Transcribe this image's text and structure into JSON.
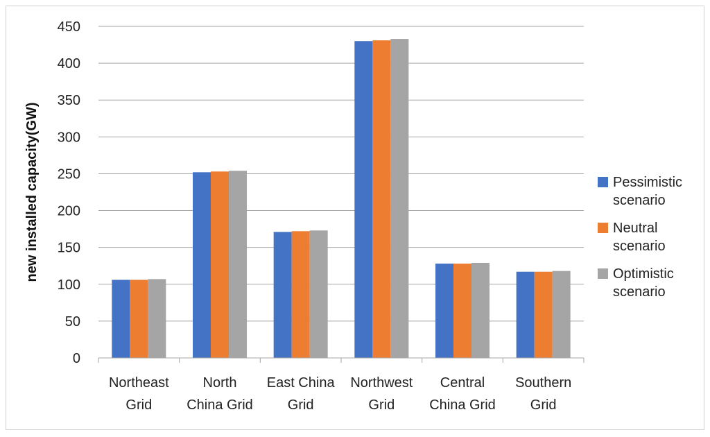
{
  "chart_data": {
    "type": "bar",
    "title": "",
    "xlabel": "",
    "ylabel": "new installed capacity(GW)",
    "ylim": [
      0,
      450
    ],
    "yticks": [
      0,
      50,
      100,
      150,
      200,
      250,
      300,
      350,
      400,
      450
    ],
    "grid": true,
    "legend_position": "right",
    "categories": [
      [
        "Northeast",
        "Grid"
      ],
      [
        "North",
        "China Grid"
      ],
      [
        "East China",
        "Grid"
      ],
      [
        "Northwest",
        "Grid"
      ],
      [
        "Central",
        "China Grid"
      ],
      [
        "Southern",
        "Grid"
      ]
    ],
    "series": [
      {
        "name_lines": [
          "Pessimistic",
          "scenario"
        ],
        "color": "#4472C4",
        "values": [
          106,
          252,
          171,
          430,
          128,
          117
        ]
      },
      {
        "name_lines": [
          "Neutral",
          "scenario"
        ],
        "color": "#ED7D31",
        "values": [
          106,
          253,
          172,
          431,
          128,
          117
        ]
      },
      {
        "name_lines": [
          "Optimistic",
          "scenario"
        ],
        "color": "#A5A5A5",
        "values": [
          107,
          254,
          173,
          433,
          129,
          118
        ]
      }
    ]
  }
}
